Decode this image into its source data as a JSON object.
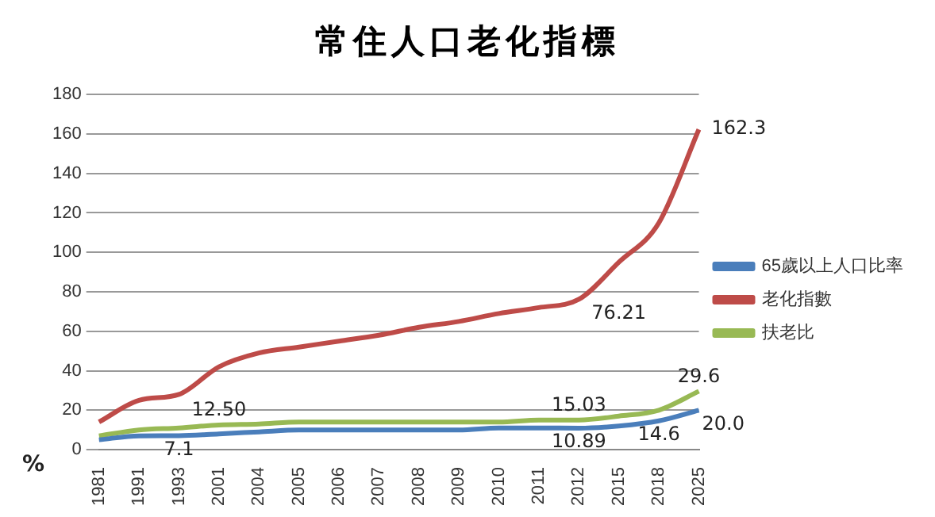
{
  "chart_data": {
    "type": "line",
    "title": "常住人口老化指標",
    "ylabel": "%",
    "categories": [
      "1981",
      "1991",
      "1993",
      "2001",
      "2004",
      "2005",
      "2006",
      "2007",
      "2008",
      "2009",
      "2010",
      "2011",
      "2012",
      "2015",
      "2018",
      "2025"
    ],
    "series": [
      {
        "name": "65歲以上人口比率",
        "color": "#4a7ebb",
        "values": [
          5,
          7,
          7.1,
          8,
          9,
          10,
          10,
          10,
          10,
          10,
          11,
          11,
          10.89,
          12,
          14.6,
          20.0
        ],
        "value_labels": [
          null,
          null,
          "7.1",
          null,
          null,
          null,
          null,
          null,
          null,
          null,
          null,
          null,
          "10.89",
          null,
          "14.6",
          "20.0"
        ]
      },
      {
        "name": "老化指數",
        "color": "#be4b48",
        "values": [
          14,
          25,
          28,
          42,
          49,
          52,
          55,
          58,
          62,
          65,
          69,
          72,
          76.21,
          95,
          115,
          162.3
        ],
        "value_labels": [
          null,
          null,
          null,
          null,
          null,
          null,
          null,
          null,
          null,
          null,
          null,
          null,
          "76.21",
          null,
          null,
          "162.3"
        ]
      },
      {
        "name": "扶老比",
        "color": "#98b954",
        "values": [
          7,
          10,
          11,
          12.5,
          13,
          14,
          14,
          14,
          14,
          14,
          14,
          15,
          15.03,
          17,
          20,
          29.6
        ],
        "value_labels": [
          null,
          null,
          null,
          "12.50",
          null,
          null,
          null,
          null,
          null,
          null,
          null,
          null,
          "15.03",
          null,
          null,
          "29.6"
        ]
      }
    ],
    "ylim": [
      0,
      180
    ],
    "yticks": [
      0,
      20,
      40,
      60,
      80,
      100,
      120,
      140,
      160,
      180
    ],
    "grid": "y",
    "legend": "right",
    "marker": "none",
    "line_style": "solid"
  }
}
